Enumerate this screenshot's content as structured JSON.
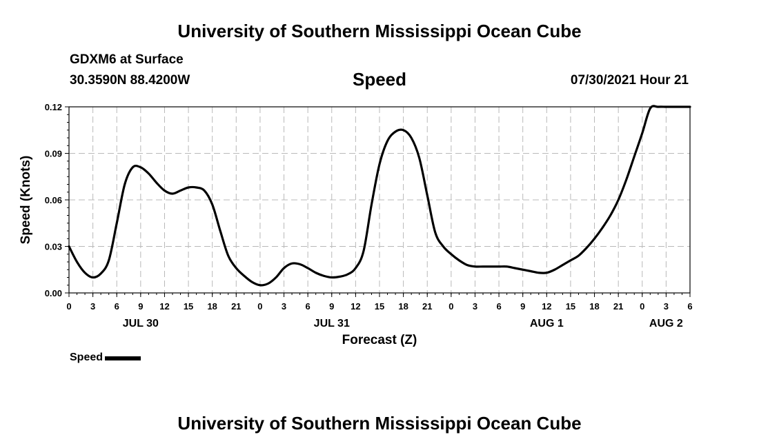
{
  "header": {
    "title": "University of Southern Mississippi Ocean Cube",
    "station": "GDXM6 at Surface",
    "coords": "30.3590N  88.4200W",
    "chart_title": "Speed",
    "timestamp": "07/30/2021 Hour 21"
  },
  "footer": {
    "title": "University of Southern Mississippi Ocean Cube"
  },
  "legend": {
    "label": "Speed"
  },
  "colors": {
    "line": "#000000",
    "grid": "#b8b8b8",
    "background": "#ffffff"
  },
  "chart_data": {
    "type": "line",
    "title": "Speed",
    "xlabel": "Forecast (Z)",
    "ylabel": "Speed (Knots)",
    "ylim": [
      0,
      0.12
    ],
    "yticks": [
      0,
      0.03,
      0.06,
      0.09,
      0.12
    ],
    "ytick_labels": [
      "0.00",
      "0.03",
      "0.06",
      "0.09",
      "0.12"
    ],
    "xlim_hours": [
      0,
      78
    ],
    "x_unit": "hours since 2021-07-30 00Z",
    "xtick_hours": [
      0,
      3,
      6,
      9,
      12,
      15,
      18,
      21,
      24,
      27,
      30,
      33,
      36,
      39,
      42,
      45,
      48,
      51,
      54,
      57,
      60,
      63,
      66,
      69,
      72,
      75,
      78
    ],
    "xtick_labels": [
      "0",
      "3",
      "6",
      "9",
      "12",
      "15",
      "18",
      "21",
      "0",
      "3",
      "6",
      "9",
      "12",
      "15",
      "18",
      "21",
      "0",
      "3",
      "6",
      "9",
      "12",
      "15",
      "18",
      "21",
      "0",
      "3",
      "6"
    ],
    "date_labels": [
      {
        "hour": 9,
        "label": "JUL 30"
      },
      {
        "hour": 33,
        "label": "JUL 31"
      },
      {
        "hour": 60,
        "label": "AUG 1"
      },
      {
        "hour": 75,
        "label": "AUG 2"
      }
    ],
    "series": [
      {
        "name": "Speed",
        "x": [
          0,
          1,
          2,
          3,
          4,
          5,
          6,
          7,
          8,
          9,
          10,
          11,
          12,
          13,
          14,
          15,
          16,
          17,
          18,
          19,
          20,
          21,
          22,
          23,
          24,
          25,
          26,
          27,
          28,
          29,
          30,
          31,
          32,
          33,
          34,
          35,
          36,
          37,
          38,
          39,
          40,
          41,
          42,
          43,
          44,
          45,
          46,
          47,
          48,
          49,
          50,
          51,
          52,
          53,
          54,
          55,
          56,
          57,
          58,
          59,
          60,
          61,
          62,
          63,
          64,
          65,
          66,
          67,
          68,
          69,
          70,
          71,
          72,
          73,
          74,
          75,
          76,
          77,
          78
        ],
        "values": [
          0.03,
          0.02,
          0.013,
          0.01,
          0.0125,
          0.021,
          0.045,
          0.07,
          0.081,
          0.081,
          0.077,
          0.071,
          0.066,
          0.064,
          0.066,
          0.068,
          0.068,
          0.066,
          0.057,
          0.04,
          0.024,
          0.016,
          0.011,
          0.007,
          0.005,
          0.006,
          0.01,
          0.016,
          0.019,
          0.0185,
          0.016,
          0.013,
          0.011,
          0.01,
          0.0105,
          0.012,
          0.016,
          0.027,
          0.057,
          0.083,
          0.098,
          0.104,
          0.105,
          0.1,
          0.087,
          0.063,
          0.039,
          0.03,
          0.025,
          0.021,
          0.018,
          0.017,
          0.017,
          0.017,
          0.017,
          0.017,
          0.016,
          0.015,
          0.014,
          0.013,
          0.013,
          0.015,
          0.018,
          0.021,
          0.024,
          0.029,
          0.035,
          0.042,
          0.05,
          0.06,
          0.073,
          0.088,
          0.103,
          0.119,
          0.12,
          0.12,
          0.12,
          0.12,
          0.12
        ]
      }
    ]
  }
}
